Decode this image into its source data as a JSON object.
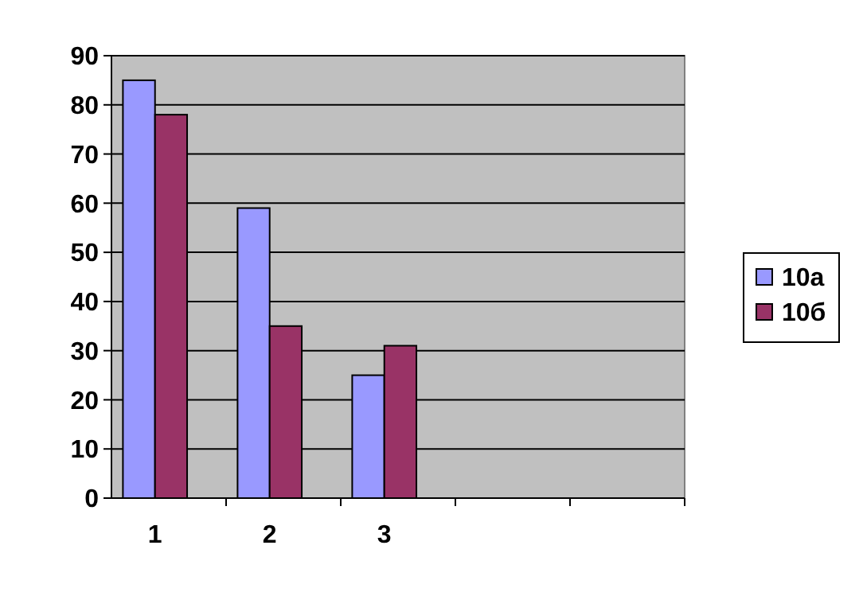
{
  "chart_data": {
    "type": "bar",
    "categories": [
      "1",
      "2",
      "3",
      null,
      null
    ],
    "series": [
      {
        "name": "10а",
        "color": "#9999ff",
        "values": [
          85,
          59,
          25,
          null,
          null
        ]
      },
      {
        "name": "10б",
        "color": "#993366",
        "values": [
          78,
          35,
          31,
          null,
          null
        ]
      }
    ],
    "ylim": [
      0,
      90
    ],
    "yticks": [
      0,
      10,
      20,
      30,
      40,
      50,
      60,
      70,
      80,
      90
    ],
    "grid": "y",
    "legend": "right"
  }
}
